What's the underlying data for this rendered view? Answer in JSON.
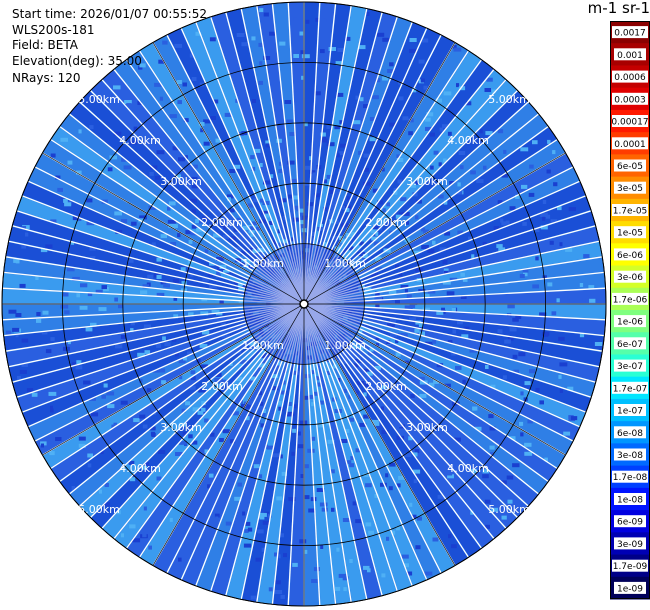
{
  "info": {
    "start_time": "Start time: 2026/01/07 00:55:52",
    "instrument": "WLS200s-181",
    "field": "Field: BETA",
    "elevation": "Elevation(deg): 35.00",
    "nrays": "NRays: 120"
  },
  "colorbar": {
    "title": "m-1 sr-1",
    "ticks": [
      "0.0017",
      "0.001",
      "0.0006",
      "0.0003",
      "0.00017",
      "0.0001",
      "6e-05",
      "3e-05",
      "1.7e-05",
      "1e-05",
      "6e-06",
      "3e-06",
      "1.7e-06",
      "1e-06",
      "6e-07",
      "3e-07",
      "1.7e-07",
      "1e-07",
      "6e-08",
      "3e-08",
      "1.7e-08",
      "1e-08",
      "6e-09",
      "3e-09",
      "1.7e-09",
      "1e-09"
    ],
    "colors": [
      "#8b0000",
      "#a80000",
      "#c40000",
      "#e00000",
      "#ff1a00",
      "#ff3c00",
      "#ff6400",
      "#ff8c00",
      "#ffb400",
      "#ffdc00",
      "#ffff00",
      "#d4ff28",
      "#aaff55",
      "#7fff7f",
      "#55ffaa",
      "#2affd4",
      "#00e6ff",
      "#00c0ff",
      "#0096ff",
      "#006aff",
      "#0040ff",
      "#0014ff",
      "#0000e0",
      "#0000b4",
      "#000088",
      "#00005a"
    ]
  },
  "chart_data": {
    "type": "heatmap",
    "subtype": "polar PPI scan",
    "nrays": 120,
    "max_range_km": 5.0,
    "range_ring_labels": [
      "1.00km",
      "2.00km",
      "3.00km",
      "4.00km",
      "5.00km"
    ],
    "range_ring_values_km": [
      1,
      2,
      3,
      4,
      5
    ],
    "dominant_value_range": [
      3e-08,
      1e-07
    ],
    "dominant_colors": [
      "#1a4fd6",
      "#2f7fe6",
      "#3a9bef",
      "#2a5fe0"
    ],
    "grid": true
  }
}
